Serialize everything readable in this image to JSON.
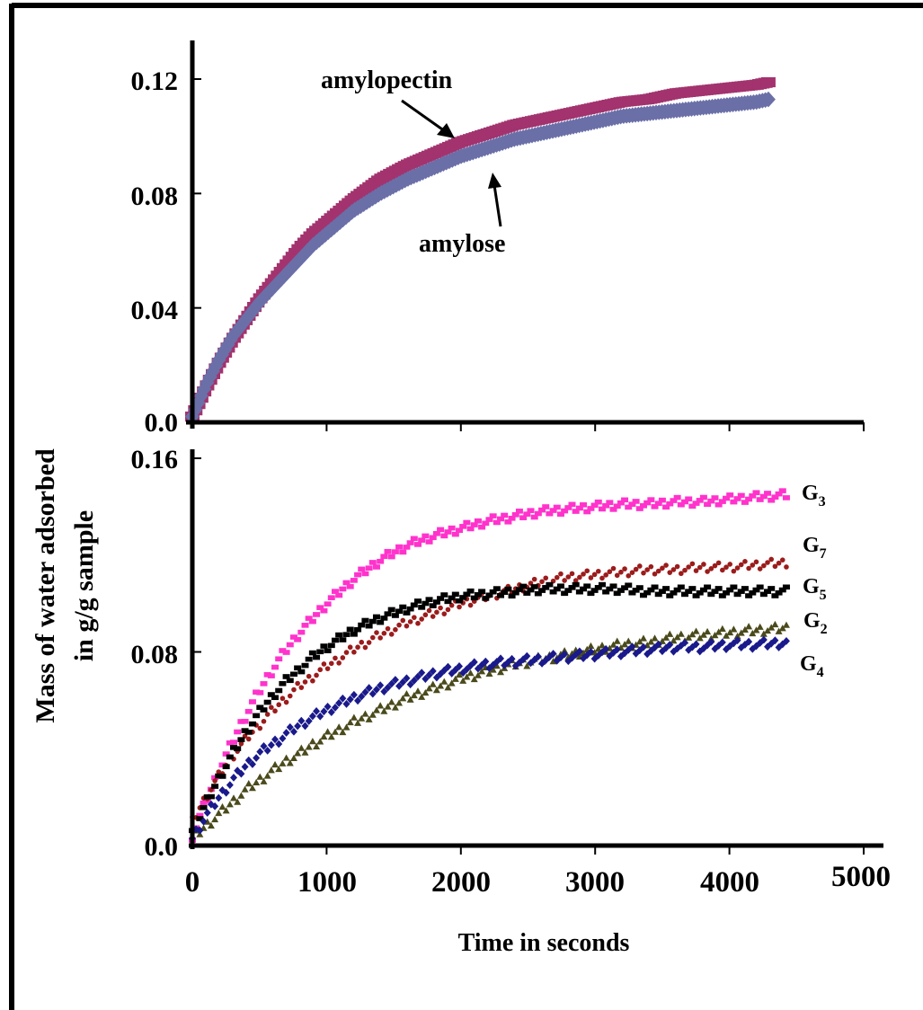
{
  "figure": {
    "y_axis_title_line1": "Mass of water adsorbed",
    "y_axis_title_line2": "in g/g sample",
    "x_axis_title": "Time in seconds"
  },
  "chart_data": [
    {
      "type": "scatter",
      "title": "",
      "xlabel": "Time in seconds",
      "ylabel": "Mass of water adsorbed in g/g sample",
      "xlim": [
        0,
        5000
      ],
      "ylim": [
        0,
        0.12
      ],
      "y_ticks": [
        "0.0",
        "0.04",
        "0.08",
        "0.12"
      ],
      "y_tick_values": [
        0,
        0.04,
        0.08,
        0.12
      ],
      "annotations": [
        "amylopectin",
        "amylose"
      ],
      "series": [
        {
          "name": "amylopectin",
          "color": "#a3336e",
          "marker": "square",
          "x": [
            0,
            100,
            200,
            300,
            400,
            500,
            600,
            700,
            800,
            900,
            1000,
            1200,
            1400,
            1600,
            1800,
            2000,
            2200,
            2400,
            2600,
            2800,
            3000,
            3200,
            3400,
            3600,
            3800,
            4000,
            4200,
            4300
          ],
          "y": [
            0.002,
            0.012,
            0.021,
            0.029,
            0.036,
            0.043,
            0.049,
            0.055,
            0.061,
            0.066,
            0.07,
            0.078,
            0.085,
            0.09,
            0.094,
            0.098,
            0.101,
            0.104,
            0.106,
            0.108,
            0.11,
            0.112,
            0.113,
            0.115,
            0.116,
            0.117,
            0.118,
            0.119
          ]
        },
        {
          "name": "amylose",
          "color": "#6a6fa8",
          "marker": "diamond",
          "x": [
            0,
            100,
            200,
            300,
            400,
            500,
            600,
            700,
            800,
            900,
            1000,
            1200,
            1400,
            1600,
            1800,
            2000,
            2200,
            2400,
            2600,
            2800,
            3000,
            3200,
            3400,
            3600,
            3800,
            4000,
            4200,
            4300
          ],
          "y": [
            0.002,
            0.013,
            0.022,
            0.03,
            0.036,
            0.042,
            0.047,
            0.052,
            0.057,
            0.062,
            0.066,
            0.074,
            0.08,
            0.085,
            0.089,
            0.093,
            0.096,
            0.099,
            0.101,
            0.103,
            0.105,
            0.107,
            0.108,
            0.109,
            0.11,
            0.111,
            0.112,
            0.113
          ]
        }
      ]
    },
    {
      "type": "scatter",
      "title": "",
      "xlabel": "Time in seconds",
      "ylabel": "Mass of water adsorbed in g/g sample",
      "xlim": [
        0,
        5000
      ],
      "ylim": [
        0,
        0.16
      ],
      "x_ticks": [
        "0",
        "1000",
        "2000",
        "3000",
        "4000",
        "5000"
      ],
      "x_tick_values": [
        0,
        1000,
        2000,
        3000,
        4000,
        5000
      ],
      "y_ticks": [
        "0.0",
        "0.08",
        "0.16"
      ],
      "y_tick_values": [
        0,
        0.08,
        0.16
      ],
      "series": [
        {
          "name": "G3",
          "label_main": "G",
          "label_sub": "3",
          "color": "#ff33cc",
          "marker": "square",
          "x": [
            0,
            100,
            200,
            300,
            400,
            500,
            600,
            700,
            800,
            900,
            1000,
            1200,
            1400,
            1600,
            1800,
            2000,
            2200,
            2400,
            2600,
            2800,
            3000,
            3200,
            3400,
            3600,
            3800,
            4000,
            4200,
            4450
          ],
          "y": [
            0.004,
            0.018,
            0.031,
            0.043,
            0.054,
            0.064,
            0.073,
            0.081,
            0.088,
            0.094,
            0.1,
            0.11,
            0.118,
            0.124,
            0.128,
            0.131,
            0.134,
            0.136,
            0.138,
            0.139,
            0.14,
            0.141,
            0.141,
            0.142,
            0.142,
            0.143,
            0.144,
            0.145
          ]
        },
        {
          "name": "G7",
          "label_main": "G",
          "label_sub": "7",
          "color": "#9b1c1c",
          "marker": "circle",
          "x": [
            0,
            100,
            200,
            300,
            400,
            500,
            600,
            700,
            800,
            900,
            1000,
            1200,
            1400,
            1600,
            1800,
            2000,
            2200,
            2400,
            2600,
            2800,
            3000,
            3200,
            3400,
            3600,
            3800,
            4000,
            4200,
            4450
          ],
          "y": [
            0.01,
            0.02,
            0.029,
            0.037,
            0.044,
            0.05,
            0.056,
            0.061,
            0.066,
            0.07,
            0.074,
            0.081,
            0.087,
            0.092,
            0.096,
            0.1,
            0.103,
            0.106,
            0.109,
            0.111,
            0.112,
            0.113,
            0.114,
            0.114,
            0.115,
            0.115,
            0.116,
            0.117
          ]
        },
        {
          "name": "G5",
          "label_main": "G",
          "label_sub": "5",
          "color": "#000000",
          "marker": "square",
          "x": [
            0,
            100,
            200,
            300,
            400,
            500,
            600,
            700,
            800,
            900,
            1000,
            1200,
            1400,
            1600,
            1800,
            2000,
            2200,
            2400,
            2600,
            2800,
            3000,
            3200,
            3400,
            3600,
            3800,
            4000,
            4200,
            4450
          ],
          "y": [
            0.005,
            0.017,
            0.028,
            0.038,
            0.047,
            0.055,
            0.062,
            0.068,
            0.073,
            0.078,
            0.082,
            0.089,
            0.094,
            0.098,
            0.101,
            0.103,
            0.104,
            0.105,
            0.106,
            0.106,
            0.106,
            0.106,
            0.105,
            0.105,
            0.105,
            0.105,
            0.105,
            0.105
          ]
        },
        {
          "name": "G2",
          "label_main": "G",
          "label_sub": "2",
          "color": "#4a4a1c",
          "marker": "triangle",
          "x": [
            0,
            100,
            200,
            300,
            400,
            500,
            600,
            700,
            800,
            900,
            1000,
            1200,
            1400,
            1600,
            1800,
            2000,
            2200,
            2400,
            2600,
            2800,
            3000,
            3200,
            3400,
            3600,
            3800,
            4000,
            4200,
            4450
          ],
          "y": [
            0.003,
            0.008,
            0.013,
            0.018,
            0.023,
            0.027,
            0.031,
            0.035,
            0.038,
            0.042,
            0.045,
            0.051,
            0.056,
            0.061,
            0.065,
            0.069,
            0.072,
            0.075,
            0.077,
            0.079,
            0.081,
            0.083,
            0.084,
            0.086,
            0.087,
            0.088,
            0.089,
            0.09
          ]
        },
        {
          "name": "G4",
          "label_main": "G",
          "label_sub": "4",
          "color": "#1a1a8c",
          "marker": "diamond",
          "x": [
            0,
            100,
            200,
            300,
            400,
            500,
            600,
            700,
            800,
            900,
            1000,
            1200,
            1400,
            1600,
            1800,
            2000,
            2200,
            2400,
            2600,
            2800,
            3000,
            3200,
            3400,
            3600,
            3800,
            4000,
            4200,
            4450
          ],
          "y": [
            0.003,
            0.012,
            0.02,
            0.027,
            0.033,
            0.038,
            0.042,
            0.046,
            0.05,
            0.053,
            0.056,
            0.061,
            0.065,
            0.068,
            0.071,
            0.073,
            0.075,
            0.076,
            0.077,
            0.078,
            0.079,
            0.08,
            0.081,
            0.082,
            0.082,
            0.083,
            0.083,
            0.084
          ]
        }
      ]
    }
  ]
}
